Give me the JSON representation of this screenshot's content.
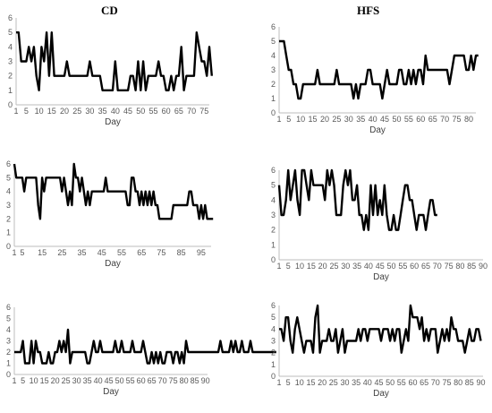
{
  "column_titles": [
    "CD",
    "HFS"
  ],
  "chart_data": [
    {
      "type": "line",
      "column": "CD",
      "row": 1,
      "xlabel": "Day",
      "ylabel": "",
      "xlim": [
        1,
        77
      ],
      "ylim": [
        0,
        6
      ],
      "xticks": [
        1,
        5,
        10,
        15,
        20,
        25,
        30,
        35,
        40,
        45,
        50,
        55,
        60,
        65,
        70,
        75
      ],
      "yticks": [
        0,
        1,
        2,
        3,
        4,
        5,
        6
      ],
      "grid": false,
      "legend": "none",
      "line_color": "#000000",
      "series": [
        {
          "values": [
            5,
            5,
            3,
            3,
            3,
            4,
            3,
            4,
            2,
            1,
            4,
            3,
            5,
            2,
            5,
            2,
            2,
            2,
            2,
            2,
            3,
            2,
            2,
            2,
            2,
            2,
            2,
            2,
            2,
            3,
            2,
            2,
            2,
            2,
            1,
            1,
            1,
            1,
            1,
            3,
            1,
            1,
            1,
            1,
            1,
            2,
            2,
            1,
            3,
            1,
            3,
            1,
            2,
            2,
            2,
            2,
            3,
            2,
            2,
            1,
            1,
            2,
            1,
            2,
            2,
            4,
            1,
            2,
            2,
            2,
            2,
            5,
            4,
            3,
            3,
            2,
            4,
            2
          ]
        }
      ]
    },
    {
      "type": "line",
      "column": "HFS",
      "row": 1,
      "xlabel": "Day",
      "ylabel": "",
      "xlim": [
        1,
        83
      ],
      "ylim": [
        0,
        6
      ],
      "xticks": [
        1,
        5,
        10,
        15,
        20,
        25,
        30,
        35,
        40,
        45,
        50,
        55,
        60,
        65,
        70,
        75,
        80
      ],
      "yticks": [
        0,
        1,
        2,
        3,
        4,
        5,
        6
      ],
      "grid": false,
      "legend": "none",
      "line_color": "#000000",
      "series": [
        {
          "values": [
            5,
            5,
            5,
            4,
            3,
            3,
            2,
            2,
            1,
            1,
            2,
            2,
            2,
            2,
            2,
            2,
            3,
            2,
            2,
            2,
            2,
            2,
            2,
            2,
            3,
            2,
            2,
            2,
            2,
            2,
            2,
            1,
            2,
            1,
            2,
            2,
            2,
            3,
            3,
            2,
            2,
            2,
            2,
            1,
            2,
            3,
            2,
            2,
            2,
            2,
            3,
            3,
            2,
            2,
            3,
            2,
            3,
            2,
            3,
            3,
            2,
            4,
            3,
            3,
            3,
            3,
            3,
            3,
            3,
            3,
            3,
            2,
            3,
            4,
            4,
            4,
            4,
            4,
            3,
            3,
            4,
            3,
            4,
            4
          ]
        }
      ]
    },
    {
      "type": "line",
      "column": "CD",
      "row": 2,
      "xlabel": "Day",
      "ylabel": "",
      "xlim": [
        1,
        100
      ],
      "ylim": [
        0,
        6
      ],
      "xticks": [
        1,
        5,
        15,
        25,
        35,
        45,
        55,
        65,
        75,
        85,
        95
      ],
      "yticks": [
        0,
        1,
        2,
        3,
        4,
        5,
        6
      ],
      "grid": false,
      "legend": "none",
      "line_color": "#000000",
      "series": [
        {
          "values": [
            6,
            5,
            5,
            5,
            5,
            4,
            5,
            5,
            5,
            5,
            5,
            5,
            3,
            2,
            5,
            4,
            5,
            5,
            5,
            5,
            5,
            5,
            5,
            5,
            4,
            5,
            4,
            3,
            4,
            3,
            6,
            5,
            5,
            4,
            5,
            4,
            3,
            4,
            3,
            4,
            4,
            4,
            4,
            4,
            4,
            4,
            5,
            4,
            4,
            4,
            4,
            4,
            4,
            4,
            4,
            4,
            4,
            3,
            3,
            5,
            5,
            4,
            4,
            3,
            4,
            3,
            4,
            3,
            4,
            3,
            4,
            3,
            3,
            2,
            2,
            2,
            2,
            2,
            2,
            2,
            3,
            3,
            3,
            3,
            3,
            3,
            3,
            3,
            4,
            4,
            3,
            3,
            3,
            2,
            3,
            2,
            3,
            2,
            2,
            2,
            2
          ]
        }
      ]
    },
    {
      "type": "line",
      "column": "HFS",
      "row": 2,
      "xlabel": "Day",
      "ylabel": "",
      "xlim": [
        1,
        90
      ],
      "ylim": [
        0,
        6
      ],
      "xticks": [
        1,
        5,
        10,
        15,
        20,
        25,
        30,
        35,
        40,
        45,
        50,
        55,
        60,
        65,
        70,
        75,
        80,
        85,
        90
      ],
      "yticks": [
        0,
        1,
        2,
        3,
        4,
        5,
        6
      ],
      "grid": false,
      "legend": "none",
      "line_color": "#000000",
      "series": [
        {
          "values": [
            5,
            3,
            3,
            4,
            6,
            4,
            5,
            6,
            4,
            3,
            6,
            6,
            5,
            4,
            6,
            5,
            5,
            5,
            5,
            5,
            4,
            6,
            5,
            6,
            5,
            3,
            3,
            3,
            5,
            6,
            5,
            6,
            4,
            4,
            5,
            3,
            3,
            2,
            3,
            2,
            5,
            3,
            5,
            3,
            4,
            3,
            5,
            3,
            2,
            2,
            3,
            2,
            2,
            3,
            4,
            5,
            5,
            4,
            4,
            3,
            2,
            3,
            3,
            3,
            2,
            3,
            4,
            4,
            3,
            3
          ]
        }
      ]
    },
    {
      "type": "line",
      "column": "CD",
      "row": 3,
      "xlabel": "Day",
      "ylabel": "",
      "xlim": [
        1,
        91
      ],
      "ylim": [
        0,
        6
      ],
      "xticks": [
        1,
        5,
        10,
        15,
        20,
        25,
        30,
        35,
        40,
        45,
        50,
        55,
        60,
        65,
        70,
        75,
        80,
        85,
        90
      ],
      "yticks": [
        0,
        1,
        2,
        3,
        4,
        5,
        6
      ],
      "grid": false,
      "legend": "none",
      "line_color": "#000000",
      "series": [
        {
          "values": [
            2,
            2,
            2,
            2,
            3,
            1,
            1,
            1,
            3,
            1,
            3,
            2,
            2,
            1,
            1,
            1,
            2,
            1,
            1,
            2,
            2,
            3,
            2,
            3,
            2,
            4,
            1,
            2,
            2,
            2,
            2,
            2,
            2,
            2,
            1,
            1,
            2,
            3,
            2,
            2,
            3,
            2,
            2,
            2,
            2,
            2,
            2,
            3,
            2,
            2,
            3,
            2,
            2,
            2,
            2,
            3,
            2,
            2,
            2,
            2,
            3,
            2,
            1,
            1,
            2,
            1,
            2,
            1,
            2,
            1,
            1,
            2,
            2,
            2,
            1,
            2,
            2,
            1,
            2,
            1,
            3,
            2,
            2,
            2,
            2,
            2,
            2,
            2,
            2,
            2,
            2,
            2,
            2,
            2,
            2,
            2,
            3,
            2,
            2,
            2,
            2,
            3,
            2,
            3,
            2,
            2,
            3,
            2,
            2,
            2,
            3,
            2,
            2,
            2,
            2,
            2,
            2,
            2,
            2,
            2,
            2,
            2,
            2
          ]
        }
      ]
    },
    {
      "type": "line",
      "column": "HFS",
      "row": 3,
      "xlabel": "Day",
      "ylabel": "",
      "xlim": [
        1,
        91
      ],
      "ylim": [
        0,
        6
      ],
      "xticks": [
        1,
        5,
        10,
        15,
        20,
        25,
        30,
        35,
        40,
        45,
        50,
        55,
        60,
        65,
        70,
        75,
        80,
        85,
        90
      ],
      "yticks": [
        0,
        1,
        2,
        3,
        4,
        5,
        6
      ],
      "grid": false,
      "legend": "none",
      "line_color": "#000000",
      "series": [
        {
          "values": [
            4,
            4,
            3,
            5,
            5,
            3,
            2,
            4,
            5,
            4,
            3,
            2,
            3,
            3,
            3,
            2,
            5,
            6,
            2,
            3,
            3,
            3,
            4,
            3,
            3,
            4,
            2,
            3,
            4,
            2,
            3,
            3,
            3,
            3,
            3,
            4,
            3,
            4,
            4,
            3,
            4,
            4,
            4,
            4,
            4,
            3,
            4,
            4,
            4,
            3,
            4,
            3,
            4,
            4,
            2,
            3,
            4,
            3,
            6,
            5,
            5,
            5,
            4,
            5,
            3,
            4,
            3,
            4,
            4,
            4,
            2,
            3,
            4,
            3,
            4,
            3,
            5,
            4,
            4,
            3,
            3,
            3,
            2,
            3,
            4,
            3,
            3,
            4,
            4,
            3
          ]
        }
      ]
    }
  ]
}
